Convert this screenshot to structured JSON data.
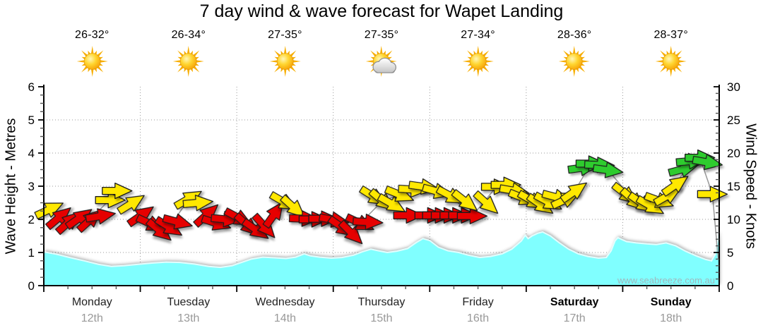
{
  "title": "7 day wind & wave forecast for Wapet Landing",
  "watermark": "www.seabreeze.com.au",
  "days": [
    {
      "name": "Monday",
      "date": "12th",
      "temp": "26-32°",
      "icon": "sunny",
      "weekend": false
    },
    {
      "name": "Tuesday",
      "date": "13th",
      "temp": "26-34°",
      "icon": "sunny",
      "weekend": false
    },
    {
      "name": "Wednesday",
      "date": "14th",
      "temp": "27-35°",
      "icon": "sunny",
      "weekend": false
    },
    {
      "name": "Thursday",
      "date": "15th",
      "temp": "27-35°",
      "icon": "partly-cloudy",
      "weekend": false
    },
    {
      "name": "Friday",
      "date": "16th",
      "temp": "27-34°",
      "icon": "sunny",
      "weekend": false
    },
    {
      "name": "Saturday",
      "date": "17th",
      "temp": "28-36°",
      "icon": "sunny",
      "weekend": true
    },
    {
      "name": "Sunday",
      "date": "18th",
      "temp": "28-37°",
      "icon": "sunny",
      "weekend": true
    }
  ],
  "colors": {
    "wave_fill": "#80FFFF",
    "wave_edge": "#E2FFFF",
    "arrow_red": "#E60000",
    "arrow_yellow": "#FFE800",
    "arrow_green": "#2FCC2F",
    "grid": "#9A9A9A",
    "axis": "#000000",
    "tick_minor": "#555555",
    "day_label": "#222222",
    "date_label": "#999999",
    "watermark": "#A0B7BD",
    "wind_line": "#999999"
  },
  "chart_data": {
    "type": "area",
    "title": "7 day wind & wave forecast for Wapet Landing",
    "x_axis": {
      "unit": "days",
      "range": [
        0,
        7
      ],
      "labels": [
        "Monday 12th",
        "Tuesday 13th",
        "Wednesday 14th",
        "Thursday 15th",
        "Friday 16th",
        "Saturday 17th",
        "Sunday 18th"
      ],
      "major_tick_every_days": 1,
      "minor_tick_every_days": 0.25,
      "grid": "vertical dotted at day boundaries"
    },
    "left_axis": {
      "title": "Wave Height - Metres",
      "ticks": [
        0,
        1,
        2,
        3,
        4,
        5,
        6
      ],
      "range": [
        0,
        6
      ],
      "minor_step": 0.25,
      "grid": "horizontal dotted at integers"
    },
    "right_axis": {
      "title": "Wind Speed - Knots",
      "ticks": [
        0,
        5,
        10,
        15,
        20,
        25,
        30
      ],
      "range": [
        0,
        30
      ],
      "minor_step": 1
    },
    "wave_height_m": {
      "series_name": "Wave Height (metres), t in days from Monday 00:00",
      "points": [
        [
          0.0,
          1.02
        ],
        [
          0.13,
          0.95
        ],
        [
          0.28,
          0.84
        ],
        [
          0.43,
          0.74
        ],
        [
          0.57,
          0.64
        ],
        [
          0.7,
          0.58
        ],
        [
          0.83,
          0.6
        ],
        [
          0.97,
          0.64
        ],
        [
          1.12,
          0.68
        ],
        [
          1.27,
          0.71
        ],
        [
          1.41,
          0.7
        ],
        [
          1.56,
          0.65
        ],
        [
          1.71,
          0.58
        ],
        [
          1.83,
          0.55
        ],
        [
          1.95,
          0.6
        ],
        [
          2.05,
          0.7
        ],
        [
          2.15,
          0.8
        ],
        [
          2.27,
          0.86
        ],
        [
          2.39,
          0.84
        ],
        [
          2.51,
          0.82
        ],
        [
          2.61,
          0.86
        ],
        [
          2.7,
          0.96
        ],
        [
          2.76,
          0.9
        ],
        [
          2.86,
          0.86
        ],
        [
          2.98,
          0.83
        ],
        [
          3.09,
          0.85
        ],
        [
          3.21,
          0.92
        ],
        [
          3.3,
          1.02
        ],
        [
          3.39,
          1.1
        ],
        [
          3.47,
          1.05
        ],
        [
          3.56,
          1.0
        ],
        [
          3.66,
          1.04
        ],
        [
          3.77,
          1.12
        ],
        [
          3.86,
          1.3
        ],
        [
          3.93,
          1.42
        ],
        [
          4.0,
          1.36
        ],
        [
          4.09,
          1.16
        ],
        [
          4.19,
          1.05
        ],
        [
          4.3,
          1.0
        ],
        [
          4.4,
          0.92
        ],
        [
          4.52,
          0.85
        ],
        [
          4.63,
          0.88
        ],
        [
          4.75,
          0.96
        ],
        [
          4.85,
          1.1
        ],
        [
          4.95,
          1.35
        ],
        [
          4.99,
          1.52
        ],
        [
          5.02,
          1.42
        ],
        [
          5.06,
          1.5
        ],
        [
          5.12,
          1.58
        ],
        [
          5.17,
          1.62
        ],
        [
          5.25,
          1.5
        ],
        [
          5.34,
          1.3
        ],
        [
          5.44,
          1.1
        ],
        [
          5.54,
          0.96
        ],
        [
          5.64,
          0.88
        ],
        [
          5.75,
          0.83
        ],
        [
          5.83,
          0.85
        ],
        [
          5.88,
          1.05
        ],
        [
          5.92,
          1.35
        ],
        [
          5.95,
          1.45
        ],
        [
          6.0,
          1.38
        ],
        [
          6.04,
          1.33
        ],
        [
          6.14,
          1.29
        ],
        [
          6.25,
          1.26
        ],
        [
          6.35,
          1.24
        ],
        [
          6.45,
          1.29
        ],
        [
          6.55,
          1.2
        ],
        [
          6.65,
          1.04
        ],
        [
          6.76,
          0.9
        ],
        [
          6.86,
          0.79
        ],
        [
          6.92,
          0.75
        ],
        [
          6.96,
          0.95
        ],
        [
          7.0,
          1.6
        ]
      ]
    },
    "wind_arrows": {
      "series_name": "Wind Speed & Direction",
      "note": "[t_days, knots, direction_deg_clockwise_from_east, color] - arrow points downwind",
      "points": [
        [
          0.06,
          11.5,
          -25,
          "Y"
        ],
        [
          0.16,
          10.3,
          -40,
          "R"
        ],
        [
          0.26,
          9.6,
          -42,
          "R"
        ],
        [
          0.37,
          10.2,
          -35,
          "R"
        ],
        [
          0.48,
          9.9,
          -42,
          "R"
        ],
        [
          0.59,
          10.5,
          -10,
          "R"
        ],
        [
          0.69,
          12.9,
          0,
          "Y"
        ],
        [
          0.76,
          14.3,
          0,
          "Y"
        ],
        [
          0.91,
          12.4,
          -32,
          "Y"
        ],
        [
          1.01,
          10.6,
          -35,
          "R"
        ],
        [
          1.11,
          9.3,
          25,
          "R"
        ],
        [
          1.2,
          8.3,
          40,
          "R"
        ],
        [
          1.3,
          8.8,
          32,
          "R"
        ],
        [
          1.39,
          9.6,
          15,
          "R"
        ],
        [
          1.5,
          13.1,
          -30,
          "Y"
        ],
        [
          1.6,
          12.5,
          -5,
          "Y"
        ],
        [
          1.69,
          10.7,
          -42,
          "R"
        ],
        [
          1.79,
          9.4,
          18,
          "R"
        ],
        [
          1.89,
          10.0,
          5,
          "R"
        ],
        [
          2.02,
          10.2,
          28,
          "R"
        ],
        [
          2.11,
          9.1,
          42,
          "R"
        ],
        [
          2.2,
          8.4,
          35,
          "R"
        ],
        [
          2.29,
          8.9,
          48,
          "R"
        ],
        [
          2.39,
          10.8,
          -55,
          "R"
        ],
        [
          2.49,
          12.6,
          30,
          "Y"
        ],
        [
          2.59,
          11.8,
          42,
          "Y"
        ],
        [
          2.7,
          10.1,
          2,
          "R"
        ],
        [
          2.8,
          10.0,
          0,
          "R"
        ],
        [
          2.9,
          10.1,
          0,
          "R"
        ],
        [
          3.01,
          9.9,
          10,
          "R"
        ],
        [
          3.09,
          8.8,
          35,
          "R"
        ],
        [
          3.19,
          7.9,
          45,
          "R"
        ],
        [
          3.28,
          9.4,
          25,
          "R"
        ],
        [
          3.36,
          9.6,
          3,
          "R"
        ],
        [
          3.42,
          13.4,
          32,
          "Y"
        ],
        [
          3.51,
          12.8,
          40,
          "Y"
        ],
        [
          3.61,
          12.3,
          30,
          "Y"
        ],
        [
          3.69,
          13.7,
          22,
          "Y"
        ],
        [
          3.83,
          14.5,
          3,
          "Y"
        ],
        [
          3.94,
          14.9,
          8,
          "Y"
        ],
        [
          3.78,
          10.6,
          0,
          "R"
        ],
        [
          4.0,
          10.6,
          0,
          "R"
        ],
        [
          4.08,
          10.6,
          0,
          "R"
        ],
        [
          4.17,
          10.6,
          0,
          "R"
        ],
        [
          4.26,
          10.6,
          0,
          "R"
        ],
        [
          4.35,
          10.6,
          0,
          "R"
        ],
        [
          4.44,
          10.5,
          0,
          "R"
        ],
        [
          4.08,
          14.2,
          15,
          "Y"
        ],
        [
          4.22,
          13.5,
          28,
          "Y"
        ],
        [
          4.37,
          12.7,
          38,
          "Y"
        ],
        [
          4.59,
          12.4,
          42,
          "Y"
        ],
        [
          4.69,
          14.9,
          0,
          "Y"
        ],
        [
          4.79,
          15.2,
          0,
          "Y"
        ],
        [
          4.88,
          14.3,
          10,
          "Y"
        ],
        [
          4.97,
          13.2,
          22,
          "Y"
        ],
        [
          5.06,
          12.8,
          30,
          "Y"
        ],
        [
          5.15,
          12.2,
          35,
          "Y"
        ],
        [
          5.23,
          12.6,
          28,
          "Y"
        ],
        [
          5.32,
          13.3,
          15,
          "Y"
        ],
        [
          5.41,
          13.0,
          -25,
          "Y"
        ],
        [
          5.5,
          14.2,
          -35,
          "Y"
        ],
        [
          5.59,
          17.8,
          -8,
          "G"
        ],
        [
          5.67,
          18.4,
          0,
          "G"
        ],
        [
          5.76,
          18.2,
          2,
          "G"
        ],
        [
          5.85,
          17.4,
          8,
          "G"
        ],
        [
          6.03,
          13.8,
          38,
          "Y"
        ],
        [
          6.11,
          12.9,
          42,
          "Y"
        ],
        [
          6.2,
          12.4,
          35,
          "Y"
        ],
        [
          6.29,
          12.0,
          30,
          "Y"
        ],
        [
          6.38,
          12.8,
          20,
          "Y"
        ],
        [
          6.47,
          13.6,
          -30,
          "Y"
        ],
        [
          6.55,
          15.2,
          -35,
          "Y"
        ],
        [
          6.63,
          17.6,
          -15,
          "G"
        ],
        [
          6.71,
          18.8,
          -5,
          "G"
        ],
        [
          6.8,
          19.3,
          0,
          "G"
        ],
        [
          6.88,
          18.6,
          10,
          "G"
        ],
        [
          6.93,
          13.8,
          0,
          "Y"
        ]
      ]
    },
    "wind_line_knots": [
      [
        0.06,
        11.5
      ],
      [
        0.26,
        9.8
      ],
      [
        0.48,
        10.0
      ],
      [
        0.72,
        13.5
      ],
      [
        0.91,
        12.4
      ],
      [
        1.11,
        9.3
      ],
      [
        1.3,
        8.8
      ],
      [
        1.5,
        13.0
      ],
      [
        1.69,
        10.7
      ],
      [
        1.89,
        10.0
      ],
      [
        2.11,
        9.1
      ],
      [
        2.29,
        8.9
      ],
      [
        2.49,
        12.4
      ],
      [
        2.7,
        10.1
      ],
      [
        2.9,
        10.1
      ],
      [
        3.09,
        8.8
      ],
      [
        3.28,
        9.4
      ],
      [
        3.51,
        12.8
      ],
      [
        3.69,
        13.7
      ],
      [
        3.94,
        14.9
      ],
      [
        4.22,
        13.5
      ],
      [
        4.44,
        10.5
      ],
      [
        4.69,
        14.9
      ],
      [
        4.88,
        14.3
      ],
      [
        5.15,
        12.2
      ],
      [
        5.32,
        13.3
      ],
      [
        5.5,
        14.2
      ],
      [
        5.67,
        18.4
      ],
      [
        5.85,
        17.4
      ],
      [
        6.11,
        12.9
      ],
      [
        6.29,
        12.0
      ],
      [
        6.47,
        13.6
      ],
      [
        6.71,
        18.8
      ],
      [
        6.8,
        19.3
      ],
      [
        6.93,
        13.8
      ],
      [
        6.99,
        4.0
      ]
    ]
  }
}
